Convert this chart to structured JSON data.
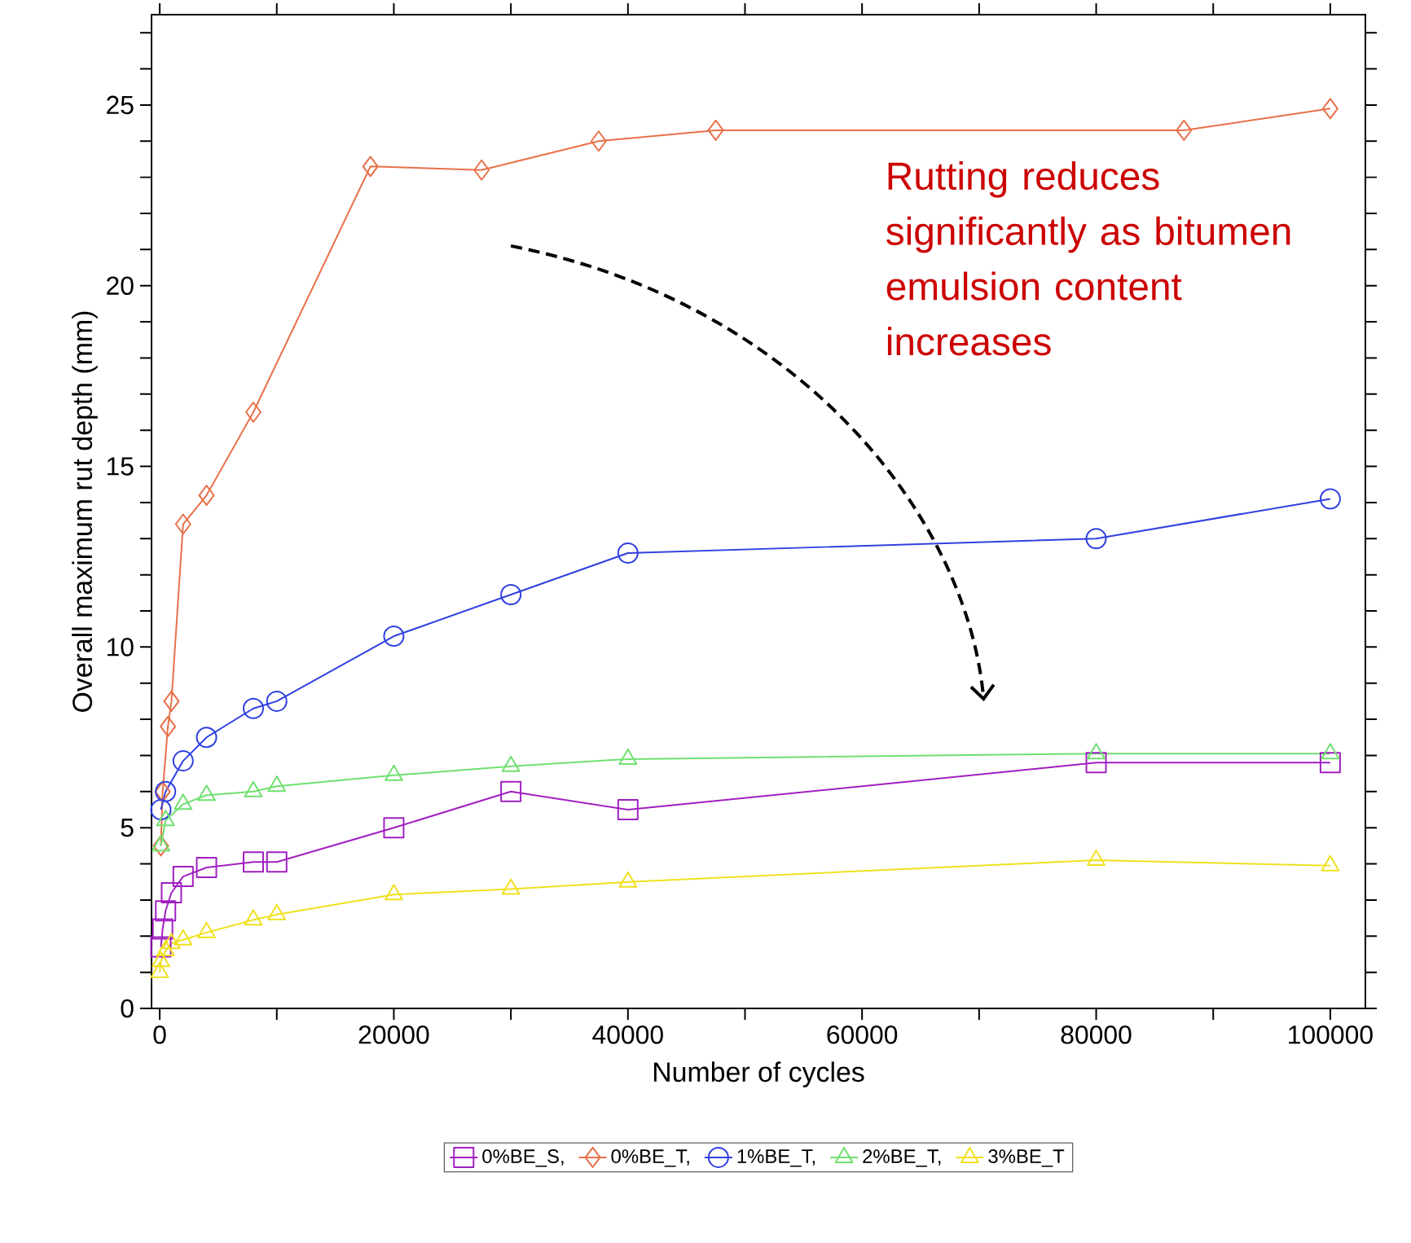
{
  "chart_data": {
    "type": "line",
    "xlabel": "Number of cycles",
    "ylabel": "Overall maximum rut depth (mm)",
    "xlim": [
      -700,
      103000
    ],
    "ylim": [
      0,
      27.5
    ],
    "xticks": [
      0,
      {
        "value": 10000,
        "label": null
      },
      20000,
      {
        "value": 30000,
        "label": null
      },
      40000,
      {
        "value": 50000,
        "label": null
      },
      60000,
      {
        "value": 70000,
        "label": null
      },
      80000,
      {
        "value": 90000,
        "label": null
      },
      100000
    ],
    "yticks": [
      0,
      {
        "value": 1,
        "label": null
      },
      {
        "value": 2,
        "label": null
      },
      {
        "value": 3,
        "label": null
      },
      {
        "value": 4,
        "label": null
      },
      5,
      {
        "value": 6,
        "label": null
      },
      {
        "value": 7,
        "label": null
      },
      {
        "value": 8,
        "label": null
      },
      {
        "value": 9,
        "label": null
      },
      10,
      {
        "value": 11,
        "label": null
      },
      {
        "value": 12,
        "label": null
      },
      {
        "value": 13,
        "label": null
      },
      {
        "value": 14,
        "label": null
      },
      15,
      {
        "value": 16,
        "label": null
      },
      {
        "value": 17,
        "label": null
      },
      {
        "value": 18,
        "label": null
      },
      {
        "value": 19,
        "label": null
      },
      20,
      {
        "value": 21,
        "label": null
      },
      {
        "value": 22,
        "label": null
      },
      {
        "value": 23,
        "label": null
      },
      {
        "value": 24,
        "label": null
      },
      25,
      {
        "value": 26,
        "label": null
      },
      {
        "value": 27,
        "label": null
      }
    ],
    "grid": false,
    "legend": "bottom",
    "line_style": "solid",
    "annotations": [
      "Rutting reduces significantly as bitumen emulsion content increases"
    ],
    "series": [
      {
        "name": "0%BE_S,",
        "color": "#a020c0",
        "marker": "square",
        "x": [
          100,
          250,
          500,
          1000,
          2000,
          4000,
          8000,
          10000,
          20000,
          30000,
          40000,
          80000,
          100000
        ],
        "values": [
          1.7,
          2.2,
          2.7,
          3.2,
          3.65,
          3.9,
          4.05,
          4.05,
          5.0,
          6.0,
          5.5,
          6.8,
          6.8
        ]
      },
      {
        "name": "0%BE_T,",
        "color": "#e8704a",
        "marker": "diamond",
        "x": [
          100,
          250,
          700,
          1000,
          2000,
          4000,
          8000,
          18000,
          27500,
          37500,
          47500,
          87500,
          100000
        ],
        "values": [
          4.5,
          6.0,
          7.8,
          8.5,
          13.4,
          14.2,
          16.5,
          23.3,
          23.2,
          24.0,
          24.3,
          24.3,
          24.9
        ]
      },
      {
        "name": "1%BE_T,",
        "color": "#3040e0",
        "marker": "circle",
        "x": [
          100,
          500,
          2000,
          4000,
          8000,
          10000,
          20000,
          30000,
          40000,
          80000,
          100000
        ],
        "values": [
          5.5,
          6.0,
          6.85,
          7.5,
          8.3,
          8.5,
          10.3,
          11.45,
          12.6,
          13.0,
          14.1
        ]
      },
      {
        "name": "2%BE_T,",
        "color": "#70e070",
        "marker": "triangle",
        "x": [
          100,
          500,
          2000,
          4000,
          8000,
          10000,
          20000,
          30000,
          40000,
          80000,
          100000
        ],
        "values": [
          4.5,
          5.2,
          5.65,
          5.9,
          6.0,
          6.15,
          6.45,
          6.7,
          6.9,
          7.05,
          7.05
        ]
      },
      {
        "name": "3%BE_T",
        "color": "#f0e020",
        "marker": "triangle",
        "x": [
          0,
          100,
          500,
          1000,
          2000,
          4000,
          8000,
          10000,
          20000,
          30000,
          40000,
          80000,
          100000
        ],
        "values": [
          1.0,
          1.3,
          1.6,
          1.8,
          1.9,
          2.1,
          2.45,
          2.6,
          3.15,
          3.3,
          3.5,
          4.1,
          3.95
        ]
      }
    ]
  }
}
